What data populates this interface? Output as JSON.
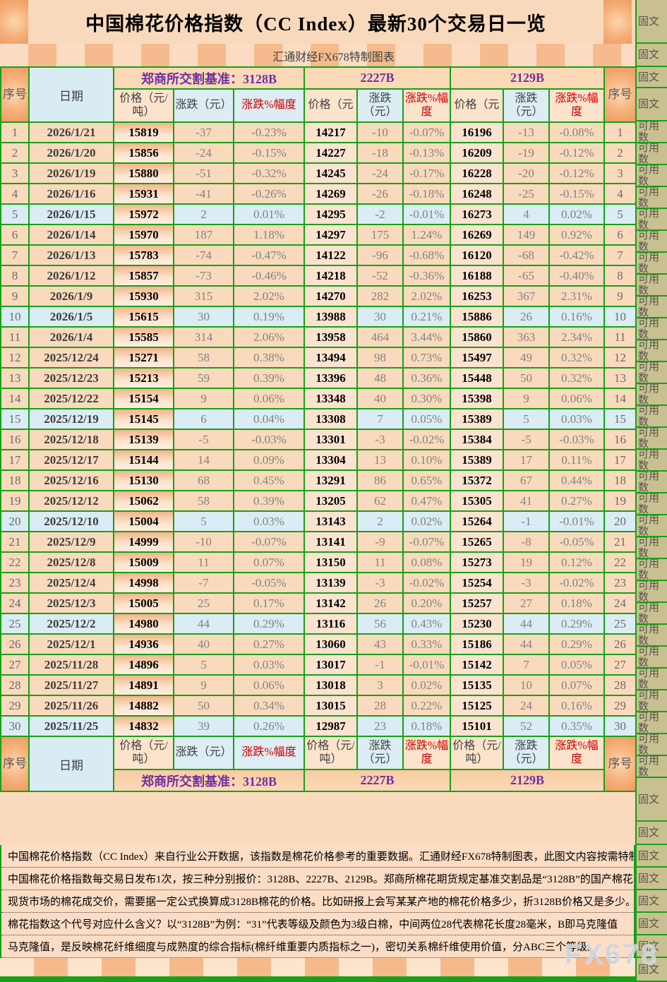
{
  "title": "中国棉花价格指数（CC Index）最新30个交易日一览",
  "subtitle": "汇通财经FX678特制图表",
  "watermark": "FX678",
  "colors": {
    "grid_green": "#18a018",
    "header_purple": "#7030a0",
    "pct_red": "#cc0000",
    "band_blue": "#daecf4",
    "price_peach": "#fbe3d0",
    "sidebar_tan": "#c9c092"
  },
  "header": {
    "seq_label": "序号",
    "date_label": "日期",
    "seq_right_label": "序号",
    "groups": [
      {
        "name": "郑商所交割基准：3128B",
        "price": "价格（元/吨）",
        "chg": "涨跌（元）",
        "pct": "涨跌%幅度"
      },
      {
        "name": "2227B",
        "price": "价格（元",
        "chg": "涨跌（元）",
        "pct": "涨跌%幅度"
      },
      {
        "name": "2129B",
        "price": "价格（元",
        "chg": "涨跌（元）",
        "pct": "涨跌%幅度"
      }
    ]
  },
  "footer_header": {
    "seq_label": "序号",
    "date_label": "日期",
    "seq_right_label": "序号",
    "groups": [
      {
        "name": "郑商所交割基准：3128B",
        "price": "价格（元/吨）",
        "chg": "涨跌（元）",
        "pct": "涨跌%幅度"
      },
      {
        "name": "2227B",
        "price": "价格（元/吨）",
        "chg": "涨跌（元）",
        "pct": "涨跌%幅度"
      },
      {
        "name": "2129B",
        "price": "价格（元/吨）",
        "chg": "涨跌（元）",
        "pct": "涨跌%幅度"
      }
    ]
  },
  "table": {
    "rows": [
      [
        "1",
        "2026/1/21",
        "15819",
        "-37",
        "-0.23%",
        "14217",
        "-10",
        "-0.07%",
        "16196",
        "-13",
        "-0.08%"
      ],
      [
        "2",
        "2026/1/20",
        "15856",
        "-24",
        "-0.15%",
        "14227",
        "-18",
        "-0.13%",
        "16209",
        "-19",
        "-0.12%"
      ],
      [
        "3",
        "2026/1/19",
        "15880",
        "-51",
        "-0.32%",
        "14245",
        "-24",
        "-0.17%",
        "16228",
        "-20",
        "-0.12%"
      ],
      [
        "4",
        "2026/1/16",
        "15931",
        "-41",
        "-0.26%",
        "14269",
        "-26",
        "-0.18%",
        "16248",
        "-25",
        "-0.15%"
      ],
      [
        "5",
        "2026/1/15",
        "15972",
        "2",
        "0.01%",
        "14295",
        "-2",
        "-0.01%",
        "16273",
        "4",
        "0.02%"
      ],
      [
        "6",
        "2026/1/14",
        "15970",
        "187",
        "1.18%",
        "14297",
        "175",
        "1.24%",
        "16269",
        "149",
        "0.92%"
      ],
      [
        "7",
        "2026/1/13",
        "15783",
        "-74",
        "-0.47%",
        "14122",
        "-96",
        "-0.68%",
        "16120",
        "-68",
        "-0.42%"
      ],
      [
        "8",
        "2026/1/12",
        "15857",
        "-73",
        "-0.46%",
        "14218",
        "-52",
        "-0.36%",
        "16188",
        "-65",
        "-0.40%"
      ],
      [
        "9",
        "2026/1/9",
        "15930",
        "315",
        "2.02%",
        "14270",
        "282",
        "2.02%",
        "16253",
        "367",
        "2.31%"
      ],
      [
        "10",
        "2026/1/5",
        "15615",
        "30",
        "0.19%",
        "13988",
        "30",
        "0.21%",
        "15886",
        "26",
        "0.16%"
      ],
      [
        "11",
        "2026/1/4",
        "15585",
        "314",
        "2.06%",
        "13958",
        "464",
        "3.44%",
        "15860",
        "363",
        "2.34%"
      ],
      [
        "12",
        "2025/12/24",
        "15271",
        "58",
        "0.38%",
        "13494",
        "98",
        "0.73%",
        "15497",
        "49",
        "0.32%"
      ],
      [
        "13",
        "2025/12/23",
        "15213",
        "59",
        "0.39%",
        "13396",
        "48",
        "0.36%",
        "15448",
        "50",
        "0.32%"
      ],
      [
        "14",
        "2025/12/22",
        "15154",
        "9",
        "0.06%",
        "13348",
        "40",
        "0.30%",
        "15398",
        "9",
        "0.06%"
      ],
      [
        "15",
        "2025/12/19",
        "15145",
        "6",
        "0.04%",
        "13308",
        "7",
        "0.05%",
        "15389",
        "5",
        "0.03%"
      ],
      [
        "16",
        "2025/12/18",
        "15139",
        "-5",
        "-0.03%",
        "13301",
        "-3",
        "-0.02%",
        "15384",
        "-5",
        "-0.03%"
      ],
      [
        "17",
        "2025/12/17",
        "15144",
        "14",
        "0.09%",
        "13304",
        "13",
        "0.10%",
        "15389",
        "17",
        "0.11%"
      ],
      [
        "18",
        "2025/12/16",
        "15130",
        "68",
        "0.45%",
        "13291",
        "86",
        "0.65%",
        "15372",
        "67",
        "0.44%"
      ],
      [
        "19",
        "2025/12/12",
        "15062",
        "58",
        "0.39%",
        "13205",
        "62",
        "0.47%",
        "15305",
        "41",
        "0.27%"
      ],
      [
        "20",
        "2025/12/10",
        "15004",
        "5",
        "0.03%",
        "13143",
        "2",
        "0.02%",
        "15264",
        "-1",
        "-0.01%"
      ],
      [
        "21",
        "2025/12/9",
        "14999",
        "-10",
        "-0.07%",
        "13141",
        "-9",
        "-0.07%",
        "15265",
        "-8",
        "-0.05%"
      ],
      [
        "22",
        "2025/12/8",
        "15009",
        "11",
        "0.07%",
        "13150",
        "11",
        "0.08%",
        "15273",
        "19",
        "0.12%"
      ],
      [
        "23",
        "2025/12/4",
        "14998",
        "-7",
        "-0.05%",
        "13139",
        "-3",
        "-0.02%",
        "15254",
        "-3",
        "-0.02%"
      ],
      [
        "24",
        "2025/12/3",
        "15005",
        "25",
        "0.17%",
        "13142",
        "26",
        "0.20%",
        "15257",
        "27",
        "0.18%"
      ],
      [
        "25",
        "2025/12/2",
        "14980",
        "44",
        "0.29%",
        "13116",
        "56",
        "0.43%",
        "15230",
        "44",
        "0.29%"
      ],
      [
        "26",
        "2025/12/1",
        "14936",
        "40",
        "0.27%",
        "13060",
        "43",
        "0.33%",
        "15186",
        "44",
        "0.29%"
      ],
      [
        "27",
        "2025/11/28",
        "14896",
        "5",
        "0.03%",
        "13017",
        "-1",
        "-0.01%",
        "15142",
        "7",
        "0.05%"
      ],
      [
        "28",
        "2025/11/27",
        "14891",
        "9",
        "0.06%",
        "13018",
        "3",
        "0.02%",
        "15135",
        "10",
        "0.07%"
      ],
      [
        "29",
        "2025/11/26",
        "14882",
        "50",
        "0.34%",
        "13015",
        "28",
        "0.22%",
        "15125",
        "24",
        "0.16%"
      ],
      [
        "30",
        "2025/11/25",
        "14832",
        "39",
        "0.26%",
        "12987",
        "23",
        "0.18%",
        "15101",
        "52",
        "0.35%"
      ]
    ]
  },
  "sidebar": {
    "top_labels": [
      "固文",
      "固文",
      "固文",
      "固文"
    ],
    "data_label": "可用数",
    "bottom_labels": [
      "固文",
      "固文",
      "固文",
      "固文",
      "固文",
      "固文",
      "固文",
      "固文"
    ]
  },
  "notes": [
    "中国棉花价格指数（CC Index）来自行业公开数据，该指数是棉花价格参考的重要数据。汇通财经FX678特制图表，此图文内容按需特制",
    "中国棉花价格指数每交易日发布1次，按三种分别报价：3128B、2227B、2129B。郑商所棉花期货规定基准交割品是“3128B”的国产棉花",
    "现货市场的棉花成交价，需要据一定公式换算成3128B棉花的价格。比如研报上会写某某产地的棉花价格多少，折3128B价格又是多少。",
    "棉花指数这个代号对应什么含义？以“3128B”为例：“31”代表等级及颜色为3级白棉，中间两位28代表棉花长度28毫米，B即马克隆值",
    "马克隆值，是反映棉花纤维细度与成熟度的综合指标(棉纤维重要内质指标之一)，密切关系棉纤维使用价值，分ABC三个等级。"
  ]
}
